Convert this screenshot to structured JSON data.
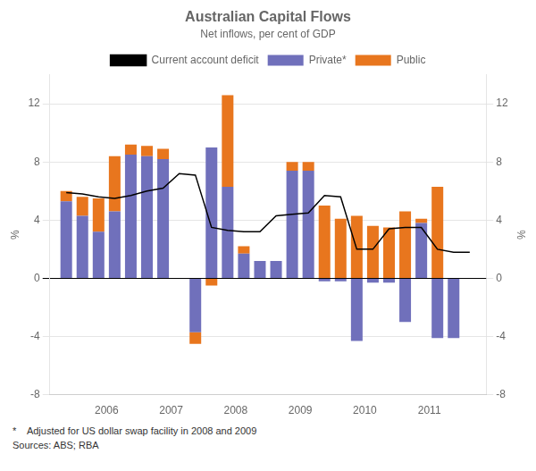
{
  "chart_data": {
    "type": "bar",
    "title": "Australian Capital Flows",
    "subtitle": "Net inflows, per cent of GDP",
    "ylabel": "%",
    "y2label": "%",
    "footnote": "*    Adjusted for US dollar swap facility in 2008 and 2009",
    "source": "Sources: ABS; RBA",
    "stacked": true,
    "grid": true,
    "legend": "top",
    "x": [
      2005.375,
      2005.625,
      2005.875,
      2006.125,
      2006.375,
      2006.625,
      2006.875,
      2007.125,
      2007.375,
      2007.625,
      2007.875,
      2008.125,
      2008.375,
      2008.625,
      2008.875,
      2009.125,
      2009.375,
      2009.625,
      2009.875,
      2010.125,
      2010.375,
      2010.625,
      2010.875,
      2011.125,
      2011.375,
      2011.625
    ],
    "xlim": [
      2005.12,
      2011.88
    ],
    "xticks": [
      2006,
      2007,
      2008,
      2009,
      2010,
      2011
    ],
    "ylim": [
      -8,
      14
    ],
    "yticks": [
      -8,
      -4,
      0,
      4,
      8,
      12
    ],
    "y2lim": [
      -8,
      14
    ],
    "y2ticks": [
      -8,
      -4,
      0,
      4,
      8,
      12
    ],
    "series": [
      {
        "name": "Private*",
        "type": "bar",
        "color": "#7070bb",
        "values": [
          5.3,
          4.3,
          3.2,
          4.6,
          8.5,
          8.4,
          8.2,
          0.0,
          -3.7,
          9.0,
          6.3,
          1.7,
          1.2,
          1.2,
          7.4,
          7.4,
          -0.2,
          -0.2,
          -4.3,
          -0.3,
          -0.3,
          -3.0,
          3.8,
          -4.1,
          -4.1,
          0.0
        ]
      },
      {
        "name": "Public",
        "type": "bar",
        "color": "#e8761e",
        "values": [
          0.7,
          1.3,
          2.3,
          3.8,
          0.7,
          0.7,
          0.7,
          0.0,
          -0.8,
          -0.5,
          6.3,
          0.5,
          0.0,
          0.0,
          0.6,
          0.6,
          5.0,
          4.1,
          4.3,
          3.6,
          3.5,
          4.6,
          0.3,
          6.3,
          0.0,
          0.0
        ]
      },
      {
        "name": "Current account deficit",
        "type": "line",
        "color": "#000000",
        "values": [
          5.9,
          5.8,
          5.6,
          5.5,
          5.7,
          6.0,
          6.2,
          7.2,
          7.1,
          3.5,
          3.3,
          3.2,
          3.2,
          4.3,
          4.4,
          4.5,
          5.7,
          5.6,
          2.0,
          2.0,
          3.4,
          3.5,
          3.5,
          2.0,
          1.8,
          1.8
        ]
      }
    ]
  }
}
